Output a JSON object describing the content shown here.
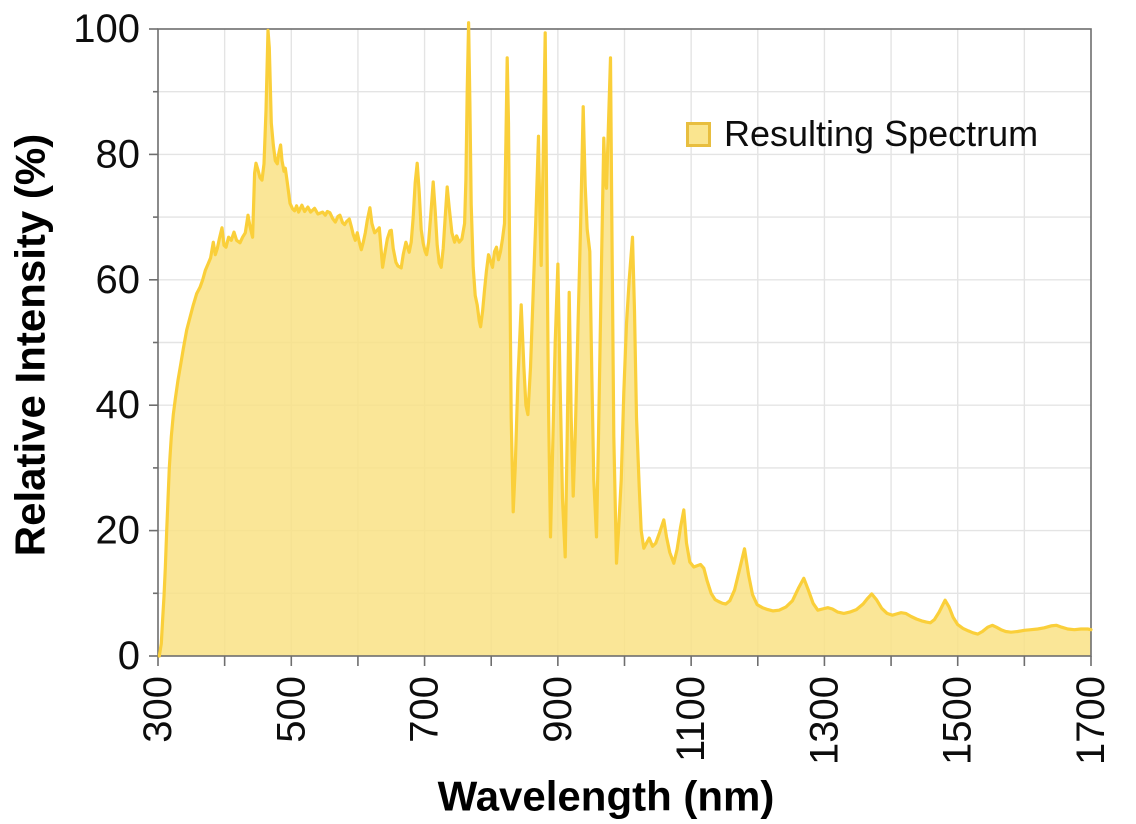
{
  "chart_data": {
    "type": "area",
    "title": "",
    "xlabel": "Wavelength (nm)",
    "ylabel": "Relative Intensity (%)",
    "legend": [
      "Resulting Spectrum"
    ],
    "legend_position": "upper-right-inside",
    "grid": true,
    "x_axis": {
      "min": 300,
      "max": 1700,
      "minor_step": 100,
      "tick_labels": [
        300,
        500,
        700,
        900,
        1100,
        1300,
        1500,
        1700
      ]
    },
    "y_axis": {
      "min": 0,
      "max": 100,
      "minor_step": 10,
      "tick_labels": [
        0,
        20,
        40,
        60,
        80,
        100
      ]
    },
    "colors": {
      "line": "#FACF3A",
      "fill": "#F9E285",
      "fill_opacity": 0.85,
      "axis": "#6E6E6E",
      "gridline": "#E4E4E4",
      "legend_swatch_fill": "#FAE58F",
      "legend_swatch_border": "#E8BE3F",
      "text": "#0d0d0d"
    },
    "series": [
      {
        "name": "Resulting Spectrum",
        "points": [
          [
            302,
            0
          ],
          [
            305,
            2
          ],
          [
            307,
            6
          ],
          [
            309,
            9.5
          ],
          [
            311,
            14
          ],
          [
            313,
            20
          ],
          [
            315,
            25
          ],
          [
            317,
            30
          ],
          [
            320,
            35
          ],
          [
            323,
            38.5
          ],
          [
            326,
            41
          ],
          [
            330,
            44
          ],
          [
            334,
            46.5
          ],
          [
            338,
            49
          ],
          [
            343,
            52
          ],
          [
            348,
            54
          ],
          [
            353,
            56
          ],
          [
            358,
            57.8
          ],
          [
            363,
            58.8
          ],
          [
            367,
            60
          ],
          [
            371,
            61.5
          ],
          [
            375,
            62.5
          ],
          [
            379,
            63.5
          ],
          [
            383,
            66
          ],
          [
            386,
            64
          ],
          [
            389,
            65
          ],
          [
            392,
            66.5
          ],
          [
            396,
            68.3
          ],
          [
            399,
            65.5
          ],
          [
            402,
            65.2
          ],
          [
            406,
            66.8
          ],
          [
            410,
            66.3
          ],
          [
            414,
            67.6
          ],
          [
            418,
            66.3
          ],
          [
            423,
            65.9
          ],
          [
            427,
            66.8
          ],
          [
            431,
            67.5
          ],
          [
            435,
            70.3
          ],
          [
            438,
            68.5
          ],
          [
            442,
            66.8
          ],
          [
            445,
            77
          ],
          [
            447,
            78.6
          ],
          [
            450,
            77.5
          ],
          [
            453,
            76.3
          ],
          [
            456,
            75.9
          ],
          [
            459,
            78.5
          ],
          [
            462,
            87
          ],
          [
            465,
            99.8
          ],
          [
            467,
            97
          ],
          [
            470,
            85
          ],
          [
            473,
            81.5
          ],
          [
            476,
            79
          ],
          [
            479,
            78.5
          ],
          [
            481,
            80
          ],
          [
            484,
            81.5
          ],
          [
            486,
            79
          ],
          [
            489,
            77.3
          ],
          [
            491,
            77.8
          ],
          [
            494,
            75.5
          ],
          [
            498,
            72.2
          ],
          [
            502,
            71.3
          ],
          [
            505,
            71
          ],
          [
            508,
            71.8
          ],
          [
            511,
            70.8
          ],
          [
            516,
            71.9
          ],
          [
            520,
            70.9
          ],
          [
            525,
            71.6
          ],
          [
            529,
            70.8
          ],
          [
            535,
            71.4
          ],
          [
            540,
            70.5
          ],
          [
            547,
            70.8
          ],
          [
            551,
            70.3
          ],
          [
            554,
            70.9
          ],
          [
            558,
            70.7
          ],
          [
            562,
            69.8
          ],
          [
            566,
            69.2
          ],
          [
            570,
            70.1
          ],
          [
            573,
            70.3
          ],
          [
            577,
            69.1
          ],
          [
            580,
            68.8
          ],
          [
            583,
            69.3
          ],
          [
            587,
            69.7
          ],
          [
            590,
            68.5
          ],
          [
            593,
            67.2
          ],
          [
            596,
            66.3
          ],
          [
            599,
            67.5
          ],
          [
            602,
            66
          ],
          [
            605,
            64.8
          ],
          [
            608,
            66
          ],
          [
            611,
            67.5
          ],
          [
            614,
            69.5
          ],
          [
            618,
            71.5
          ],
          [
            621,
            69
          ],
          [
            625,
            67.5
          ],
          [
            628,
            67.8
          ],
          [
            632,
            68.3
          ],
          [
            635,
            64.5
          ],
          [
            637,
            62
          ],
          [
            640,
            64
          ],
          [
            644,
            66.5
          ],
          [
            648,
            67.8
          ],
          [
            650,
            67.9
          ],
          [
            653,
            65
          ],
          [
            657,
            62.8
          ],
          [
            660,
            62.2
          ],
          [
            665,
            61.9
          ],
          [
            668,
            64
          ],
          [
            672,
            66
          ],
          [
            677,
            64.4
          ],
          [
            680,
            66
          ],
          [
            683,
            70
          ],
          [
            686,
            75.5
          ],
          [
            689,
            78.6
          ],
          [
            692,
            74
          ],
          [
            695,
            68
          ],
          [
            698,
            65.8
          ],
          [
            701,
            64.5
          ],
          [
            703,
            64
          ],
          [
            706,
            66
          ],
          [
            709,
            70
          ],
          [
            713,
            75.6
          ],
          [
            716,
            71
          ],
          [
            719,
            65.5
          ],
          [
            722,
            62.7
          ],
          [
            725,
            62
          ],
          [
            728,
            65
          ],
          [
            731,
            70
          ],
          [
            734,
            74.8
          ],
          [
            737,
            71.5
          ],
          [
            741,
            67.5
          ],
          [
            745,
            66
          ],
          [
            748,
            67
          ],
          [
            752,
            66
          ],
          [
            756,
            66.5
          ],
          [
            760,
            69
          ],
          [
            762,
            76
          ],
          [
            764,
            90
          ],
          [
            766,
            101
          ],
          [
            768,
            88
          ],
          [
            770,
            72
          ],
          [
            773,
            62
          ],
          [
            776,
            57.5
          ],
          [
            779,
            56
          ],
          [
            782,
            53.5
          ],
          [
            784,
            52.5
          ],
          [
            787,
            55
          ],
          [
            790,
            58.5
          ],
          [
            793,
            61.5
          ],
          [
            796,
            64
          ],
          [
            799,
            63
          ],
          [
            802,
            62
          ],
          [
            805,
            64.5
          ],
          [
            808,
            65.2
          ],
          [
            811,
            63.2
          ],
          [
            814,
            64.5
          ],
          [
            817,
            66.5
          ],
          [
            820,
            69
          ],
          [
            822,
            82
          ],
          [
            824,
            95.4
          ],
          [
            826,
            85
          ],
          [
            828,
            60
          ],
          [
            830,
            38
          ],
          [
            833,
            23
          ],
          [
            836,
            30
          ],
          [
            840,
            44
          ],
          [
            845,
            56
          ],
          [
            849,
            46
          ],
          [
            852,
            40
          ],
          [
            855,
            38.5
          ],
          [
            859,
            46
          ],
          [
            863,
            58
          ],
          [
            867,
            70
          ],
          [
            871,
            82.9
          ],
          [
            873,
            70
          ],
          [
            875,
            62.3
          ],
          [
            878,
            80
          ],
          [
            881,
            99.4
          ],
          [
            883,
            75
          ],
          [
            886,
            40
          ],
          [
            889,
            19
          ],
          [
            892,
            32
          ],
          [
            896,
            50
          ],
          [
            900,
            62.5
          ],
          [
            903,
            45
          ],
          [
            907,
            25
          ],
          [
            911,
            15.8
          ],
          [
            914,
            35
          ],
          [
            917,
            58
          ],
          [
            920,
            38
          ],
          [
            923,
            25.5
          ],
          [
            926,
            35
          ],
          [
            930,
            52
          ],
          [
            934,
            68
          ],
          [
            938,
            87.6
          ],
          [
            941,
            75
          ],
          [
            944,
            68
          ],
          [
            948,
            64.5
          ],
          [
            951,
            45
          ],
          [
            954,
            28
          ],
          [
            958,
            19
          ],
          [
            961,
            35
          ],
          [
            965,
            60
          ],
          [
            969,
            82.6
          ],
          [
            971,
            76
          ],
          [
            973,
            74.6
          ],
          [
            976,
            85
          ],
          [
            979,
            95.4
          ],
          [
            981,
            70
          ],
          [
            984,
            35
          ],
          [
            988,
            14.8
          ],
          [
            991,
            20
          ],
          [
            995,
            28
          ],
          [
            999,
            42
          ],
          [
            1003,
            53
          ],
          [
            1007,
            60
          ],
          [
            1012,
            66.8
          ],
          [
            1015,
            55
          ],
          [
            1018,
            38
          ],
          [
            1022,
            27
          ],
          [
            1025,
            20
          ],
          [
            1029,
            17.2
          ],
          [
            1033,
            18
          ],
          [
            1037,
            18.8
          ],
          [
            1042,
            17.5
          ],
          [
            1047,
            18
          ],
          [
            1052,
            19.5
          ],
          [
            1059,
            21.7
          ],
          [
            1063,
            19
          ],
          [
            1068,
            16.5
          ],
          [
            1074,
            14.8
          ],
          [
            1079,
            17
          ],
          [
            1084,
            20.5
          ],
          [
            1089,
            23.3
          ],
          [
            1093,
            18
          ],
          [
            1098,
            15
          ],
          [
            1104,
            14.2
          ],
          [
            1109,
            14.4
          ],
          [
            1114,
            14.6
          ],
          [
            1119,
            14
          ],
          [
            1124,
            12
          ],
          [
            1130,
            10
          ],
          [
            1136,
            9
          ],
          [
            1141,
            8.7
          ],
          [
            1147,
            8.4
          ],
          [
            1152,
            8.3
          ],
          [
            1158,
            8.8
          ],
          [
            1165,
            10.5
          ],
          [
            1172,
            13.5
          ],
          [
            1180,
            17.1
          ],
          [
            1186,
            13
          ],
          [
            1192,
            9.8
          ],
          [
            1199,
            8.2
          ],
          [
            1207,
            7.7
          ],
          [
            1215,
            7.4
          ],
          [
            1223,
            7.2
          ],
          [
            1232,
            7.3
          ],
          [
            1242,
            7.8
          ],
          [
            1252,
            8.8
          ],
          [
            1261,
            10.8
          ],
          [
            1269,
            12.4
          ],
          [
            1276,
            10.5
          ],
          [
            1283,
            8.4
          ],
          [
            1290,
            7.3
          ],
          [
            1297,
            7.5
          ],
          [
            1305,
            7.7
          ],
          [
            1312,
            7.5
          ],
          [
            1320,
            7.0
          ],
          [
            1329,
            6.8
          ],
          [
            1338,
            7.0
          ],
          [
            1348,
            7.4
          ],
          [
            1358,
            8.3
          ],
          [
            1365,
            9.2
          ],
          [
            1371,
            9.9
          ],
          [
            1378,
            9.0
          ],
          [
            1386,
            7.6
          ],
          [
            1394,
            6.8
          ],
          [
            1402,
            6.5
          ],
          [
            1408,
            6.7
          ],
          [
            1415,
            6.9
          ],
          [
            1422,
            6.8
          ],
          [
            1430,
            6.3
          ],
          [
            1438,
            5.9
          ],
          [
            1446,
            5.6
          ],
          [
            1453,
            5.4
          ],
          [
            1459,
            5.3
          ],
          [
            1465,
            5.8
          ],
          [
            1472,
            7.0
          ],
          [
            1481,
            8.9
          ],
          [
            1487,
            7.8
          ],
          [
            1493,
            6.2
          ],
          [
            1500,
            5.0
          ],
          [
            1508,
            4.4
          ],
          [
            1516,
            4.0
          ],
          [
            1523,
            3.7
          ],
          [
            1530,
            3.5
          ],
          [
            1537,
            3.9
          ],
          [
            1545,
            4.6
          ],
          [
            1552,
            4.9
          ],
          [
            1558,
            4.6
          ],
          [
            1565,
            4.2
          ],
          [
            1572,
            3.9
          ],
          [
            1580,
            3.8
          ],
          [
            1590,
            3.9
          ],
          [
            1600,
            4.1
          ],
          [
            1610,
            4.2
          ],
          [
            1620,
            4.3
          ],
          [
            1630,
            4.5
          ],
          [
            1640,
            4.8
          ],
          [
            1648,
            4.9
          ],
          [
            1656,
            4.6
          ],
          [
            1665,
            4.3
          ],
          [
            1675,
            4.2
          ],
          [
            1685,
            4.3
          ],
          [
            1695,
            4.3
          ],
          [
            1700,
            4.2
          ]
        ]
      }
    ]
  },
  "legend": {
    "label": "Resulting Spectrum"
  }
}
